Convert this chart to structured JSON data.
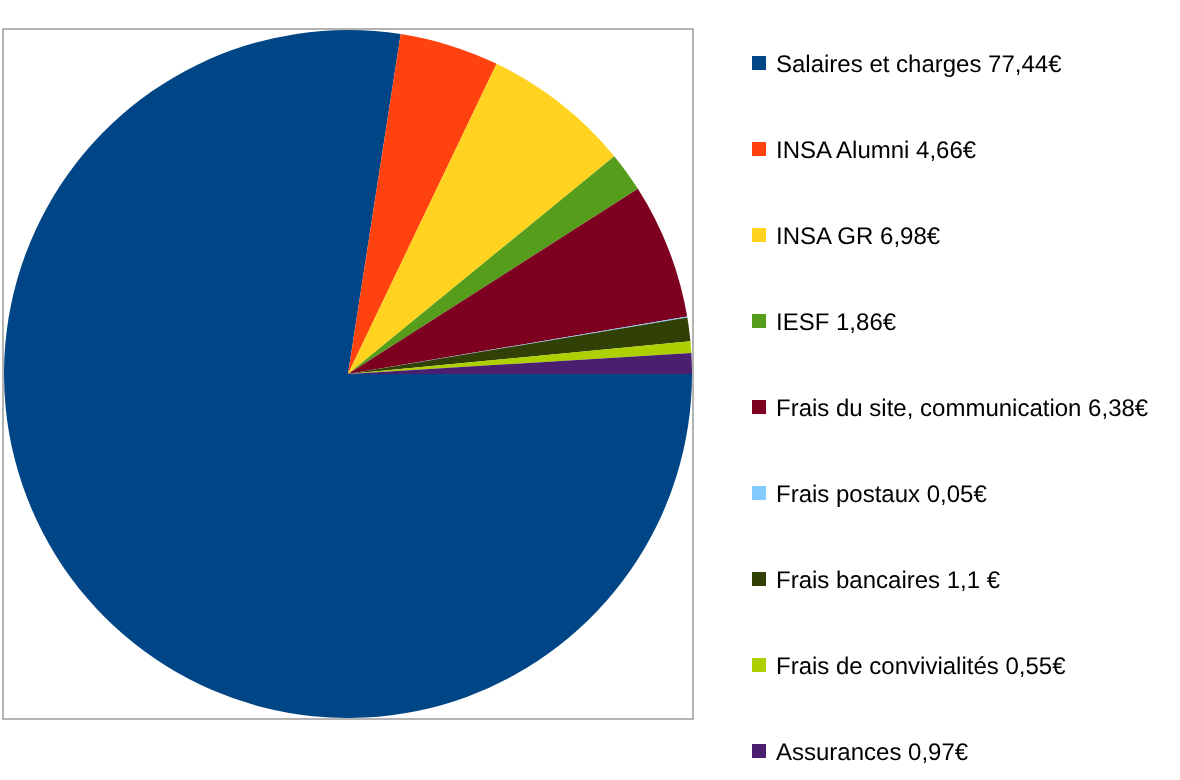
{
  "chart_data": {
    "type": "pie",
    "categories": [
      "Salaires et charges 77,44€",
      "INSA Alumni 4,66€",
      "INSA GR 6,98€",
      "IESF 1,86€",
      "Frais du site, communication 6,38€",
      "Frais postaux 0,05€",
      "Frais bancaires 1,1 €",
      "Frais de convivialités 0,55€",
      "Assurances 0,97€"
    ],
    "values": [
      77.44,
      4.66,
      6.98,
      1.86,
      6.38,
      0.05,
      1.1,
      0.55,
      0.97
    ],
    "colors": [
      "#004586",
      "#ff420e",
      "#ffd320",
      "#579d1c",
      "#7e0021",
      "#83caff",
      "#314004",
      "#aecf00",
      "#4b1f6f"
    ],
    "legend": "right"
  }
}
